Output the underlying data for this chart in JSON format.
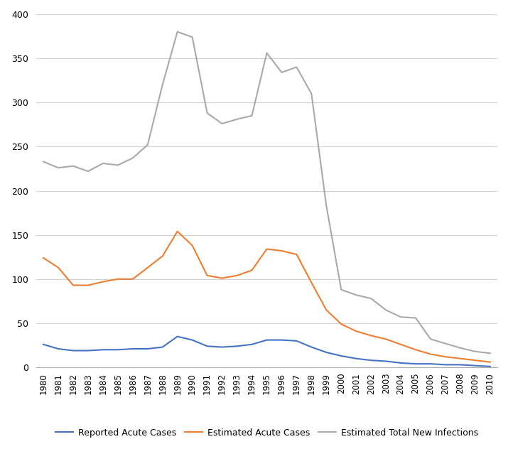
{
  "years": [
    1980,
    1981,
    1982,
    1983,
    1984,
    1985,
    1986,
    1987,
    1988,
    1989,
    1990,
    1991,
    1992,
    1993,
    1994,
    1995,
    1996,
    1997,
    1998,
    1999,
    2000,
    2001,
    2002,
    2003,
    2004,
    2005,
    2006,
    2007,
    2008,
    2009,
    2010
  ],
  "reported_acute": [
    26,
    21,
    19,
    19,
    20,
    20,
    21,
    21,
    23,
    35,
    31,
    24,
    23,
    24,
    26,
    31,
    31,
    30,
    23,
    17,
    13,
    10,
    8,
    7,
    5,
    4,
    4,
    3,
    3,
    2,
    1
  ],
  "estimated_acute": [
    124,
    113,
    93,
    93,
    97,
    100,
    100,
    113,
    126,
    154,
    138,
    104,
    101,
    104,
    110,
    134,
    132,
    128,
    96,
    65,
    49,
    41,
    36,
    32,
    26,
    20,
    15,
    12,
    10,
    8,
    6
  ],
  "estimated_total_new": [
    233,
    226,
    228,
    222,
    231,
    229,
    237,
    252,
    320,
    380,
    374,
    288,
    276,
    281,
    285,
    356,
    334,
    340,
    310,
    183,
    88,
    82,
    78,
    65,
    57,
    56,
    32,
    27,
    22,
    18,
    16
  ],
  "reported_color": "#4472C4",
  "estimated_acute_color": "#ED7D31",
  "estimated_total_color": "#A9A9A9",
  "line_width": 1.5,
  "ylim": [
    0,
    400
  ],
  "yticks": [
    0,
    50,
    100,
    150,
    200,
    250,
    300,
    350,
    400
  ],
  "legend_labels": [
    "Reported Acute Cases",
    "Estimated Acute Cases",
    "Estimated Total New Infections"
  ],
  "background_color": "#ffffff",
  "grid_color": "#d3d3d3"
}
